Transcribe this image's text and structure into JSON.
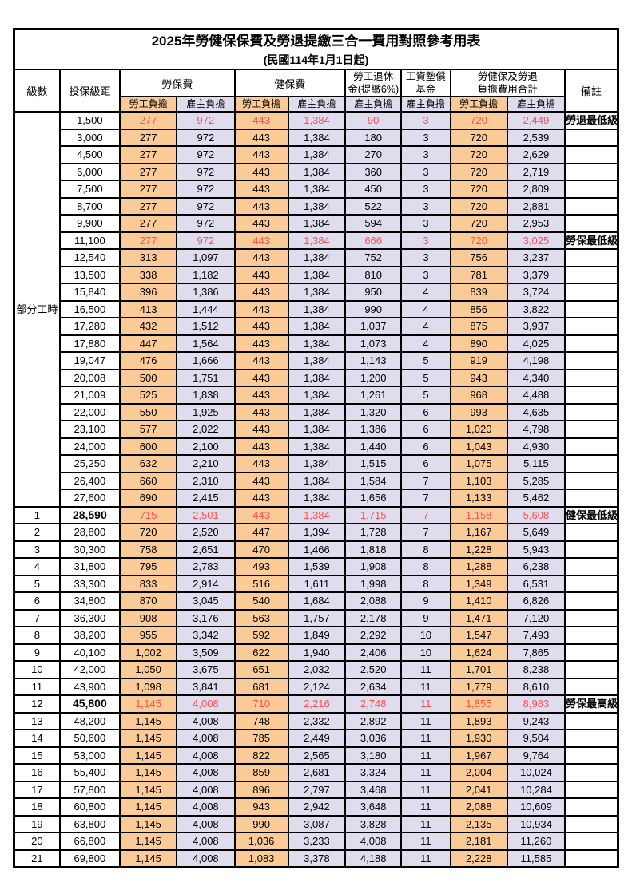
{
  "table": {
    "title": "2025年勞健保保費及勞退提繳三合一費用對照參考用表",
    "subtitle": "(民國114年1月1日起)",
    "headers": {
      "grade": "級數",
      "bracket": "投保級距",
      "labor_insurance": "勞保費",
      "health_insurance": "健保費",
      "pension_line1": "勞工退休",
      "pension_line2": "金(提繳6%)",
      "wage_fund_line1": "工資墊償",
      "wage_fund_line2": "基金",
      "total_line1": "勞健保及勞退",
      "total_line2": "負擔費用合計",
      "remarks": "備註",
      "employee_burden": "勞工負擔",
      "employer_burden": "雇主負擔"
    },
    "part_time_label": "部分工時",
    "part_time_rowspan": 23,
    "value_column_types": [
      "emp",
      "er",
      "emp",
      "er",
      "er",
      "er",
      "emp",
      "er"
    ],
    "rows": [
      {
        "grade": "",
        "bracket": "1,500",
        "values": [
          "277",
          "972",
          "443",
          "1,384",
          "90",
          "3",
          "720",
          "2,449"
        ],
        "note": "勞退最低級距",
        "red": true,
        "bold": false
      },
      {
        "grade": "",
        "bracket": "3,000",
        "values": [
          "277",
          "972",
          "443",
          "1,384",
          "180",
          "3",
          "720",
          "2,539"
        ],
        "note": "",
        "red": false,
        "bold": false
      },
      {
        "grade": "",
        "bracket": "4,500",
        "values": [
          "277",
          "972",
          "443",
          "1,384",
          "270",
          "3",
          "720",
          "2,629"
        ],
        "note": "",
        "red": false,
        "bold": false
      },
      {
        "grade": "",
        "bracket": "6,000",
        "values": [
          "277",
          "972",
          "443",
          "1,384",
          "360",
          "3",
          "720",
          "2,719"
        ],
        "note": "",
        "red": false,
        "bold": false
      },
      {
        "grade": "",
        "bracket": "7,500",
        "values": [
          "277",
          "972",
          "443",
          "1,384",
          "450",
          "3",
          "720",
          "2,809"
        ],
        "note": "",
        "red": false,
        "bold": false
      },
      {
        "grade": "",
        "bracket": "8,700",
        "values": [
          "277",
          "972",
          "443",
          "1,384",
          "522",
          "3",
          "720",
          "2,881"
        ],
        "note": "",
        "red": false,
        "bold": false
      },
      {
        "grade": "",
        "bracket": "9,900",
        "values": [
          "277",
          "972",
          "443",
          "1,384",
          "594",
          "3",
          "720",
          "2,953"
        ],
        "note": "",
        "red": false,
        "bold": false
      },
      {
        "grade": "",
        "bracket": "11,100",
        "values": [
          "277",
          "972",
          "443",
          "1,384",
          "666",
          "3",
          "720",
          "3,025"
        ],
        "note": "勞保最低級距",
        "red": true,
        "bold": false
      },
      {
        "grade": "",
        "bracket": "12,540",
        "values": [
          "313",
          "1,097",
          "443",
          "1,384",
          "752",
          "3",
          "756",
          "3,237"
        ],
        "note": "",
        "red": false,
        "bold": false
      },
      {
        "grade": "",
        "bracket": "13,500",
        "values": [
          "338",
          "1,182",
          "443",
          "1,384",
          "810",
          "3",
          "781",
          "3,379"
        ],
        "note": "",
        "red": false,
        "bold": false
      },
      {
        "grade": "",
        "bracket": "15,840",
        "values": [
          "396",
          "1,386",
          "443",
          "1,384",
          "950",
          "4",
          "839",
          "3,724"
        ],
        "note": "",
        "red": false,
        "bold": false
      },
      {
        "grade": "",
        "bracket": "16,500",
        "values": [
          "413",
          "1,444",
          "443",
          "1,384",
          "990",
          "4",
          "856",
          "3,822"
        ],
        "note": "",
        "red": false,
        "bold": false
      },
      {
        "grade": "",
        "bracket": "17,280",
        "values": [
          "432",
          "1,512",
          "443",
          "1,384",
          "1,037",
          "4",
          "875",
          "3,937"
        ],
        "note": "",
        "red": false,
        "bold": false
      },
      {
        "grade": "",
        "bracket": "17,880",
        "values": [
          "447",
          "1,564",
          "443",
          "1,384",
          "1,073",
          "4",
          "890",
          "4,025"
        ],
        "note": "",
        "red": false,
        "bold": false
      },
      {
        "grade": "",
        "bracket": "19,047",
        "values": [
          "476",
          "1,666",
          "443",
          "1,384",
          "1,143",
          "5",
          "919",
          "4,198"
        ],
        "note": "",
        "red": false,
        "bold": false
      },
      {
        "grade": "",
        "bracket": "20,008",
        "values": [
          "500",
          "1,751",
          "443",
          "1,384",
          "1,200",
          "5",
          "943",
          "4,340"
        ],
        "note": "",
        "red": false,
        "bold": false
      },
      {
        "grade": "",
        "bracket": "21,009",
        "values": [
          "525",
          "1,838",
          "443",
          "1,384",
          "1,261",
          "5",
          "968",
          "4,488"
        ],
        "note": "",
        "red": false,
        "bold": false
      },
      {
        "grade": "",
        "bracket": "22,000",
        "values": [
          "550",
          "1,925",
          "443",
          "1,384",
          "1,320",
          "6",
          "993",
          "4,635"
        ],
        "note": "",
        "red": false,
        "bold": false
      },
      {
        "grade": "",
        "bracket": "23,100",
        "values": [
          "577",
          "2,022",
          "443",
          "1,384",
          "1,386",
          "6",
          "1,020",
          "4,798"
        ],
        "note": "",
        "red": false,
        "bold": false
      },
      {
        "grade": "",
        "bracket": "24,000",
        "values": [
          "600",
          "2,100",
          "443",
          "1,384",
          "1,440",
          "6",
          "1,043",
          "4,930"
        ],
        "note": "",
        "red": false,
        "bold": false
      },
      {
        "grade": "",
        "bracket": "25,250",
        "values": [
          "632",
          "2,210",
          "443",
          "1,384",
          "1,515",
          "6",
          "1,075",
          "5,115"
        ],
        "note": "",
        "red": false,
        "bold": false
      },
      {
        "grade": "",
        "bracket": "26,400",
        "values": [
          "660",
          "2,310",
          "443",
          "1,384",
          "1,584",
          "7",
          "1,103",
          "5,285"
        ],
        "note": "",
        "red": false,
        "bold": false
      },
      {
        "grade": "",
        "bracket": "27,600",
        "values": [
          "690",
          "2,415",
          "443",
          "1,384",
          "1,656",
          "7",
          "1,133",
          "5,462"
        ],
        "note": "",
        "red": false,
        "bold": false
      },
      {
        "grade": "1",
        "bracket": "28,590",
        "values": [
          "715",
          "2,501",
          "443",
          "1,384",
          "1,715",
          "7",
          "1,158",
          "5,608"
        ],
        "note": "健保最低級距",
        "red": true,
        "bold": true
      },
      {
        "grade": "2",
        "bracket": "28,800",
        "values": [
          "720",
          "2,520",
          "447",
          "1,394",
          "1,728",
          "7",
          "1,167",
          "5,649"
        ],
        "note": "",
        "red": false,
        "bold": false
      },
      {
        "grade": "3",
        "bracket": "30,300",
        "values": [
          "758",
          "2,651",
          "470",
          "1,466",
          "1,818",
          "8",
          "1,228",
          "5,943"
        ],
        "note": "",
        "red": false,
        "bold": false
      },
      {
        "grade": "4",
        "bracket": "31,800",
        "values": [
          "795",
          "2,783",
          "493",
          "1,539",
          "1,908",
          "8",
          "1,288",
          "6,238"
        ],
        "note": "",
        "red": false,
        "bold": false
      },
      {
        "grade": "5",
        "bracket": "33,300",
        "values": [
          "833",
          "2,914",
          "516",
          "1,611",
          "1,998",
          "8",
          "1,349",
          "6,531"
        ],
        "note": "",
        "red": false,
        "bold": false
      },
      {
        "grade": "6",
        "bracket": "34,800",
        "values": [
          "870",
          "3,045",
          "540",
          "1,684",
          "2,088",
          "9",
          "1,410",
          "6,826"
        ],
        "note": "",
        "red": false,
        "bold": false
      },
      {
        "grade": "7",
        "bracket": "36,300",
        "values": [
          "908",
          "3,176",
          "563",
          "1,757",
          "2,178",
          "9",
          "1,471",
          "7,120"
        ],
        "note": "",
        "red": false,
        "bold": false
      },
      {
        "grade": "8",
        "bracket": "38,200",
        "values": [
          "955",
          "3,342",
          "592",
          "1,849",
          "2,292",
          "10",
          "1,547",
          "7,493"
        ],
        "note": "",
        "red": false,
        "bold": false
      },
      {
        "grade": "9",
        "bracket": "40,100",
        "values": [
          "1,002",
          "3,509",
          "622",
          "1,940",
          "2,406",
          "10",
          "1,624",
          "7,865"
        ],
        "note": "",
        "red": false,
        "bold": false
      },
      {
        "grade": "10",
        "bracket": "42,000",
        "values": [
          "1,050",
          "3,675",
          "651",
          "2,032",
          "2,520",
          "11",
          "1,701",
          "8,238"
        ],
        "note": "",
        "red": false,
        "bold": false
      },
      {
        "grade": "11",
        "bracket": "43,900",
        "values": [
          "1,098",
          "3,841",
          "681",
          "2,124",
          "2,634",
          "11",
          "1,779",
          "8,610"
        ],
        "note": "",
        "red": false,
        "bold": false
      },
      {
        "grade": "12",
        "bracket": "45,800",
        "values": [
          "1,145",
          "4,008",
          "710",
          "2,216",
          "2,748",
          "11",
          "1,855",
          "8,983"
        ],
        "note": "勞保最高級距",
        "red": true,
        "bold": true
      },
      {
        "grade": "13",
        "bracket": "48,200",
        "values": [
          "1,145",
          "4,008",
          "748",
          "2,332",
          "2,892",
          "11",
          "1,893",
          "9,243"
        ],
        "note": "",
        "red": false,
        "bold": false
      },
      {
        "grade": "14",
        "bracket": "50,600",
        "values": [
          "1,145",
          "4,008",
          "785",
          "2,449",
          "3,036",
          "11",
          "1,930",
          "9,504"
        ],
        "note": "",
        "red": false,
        "bold": false
      },
      {
        "grade": "15",
        "bracket": "53,000",
        "values": [
          "1,145",
          "4,008",
          "822",
          "2,565",
          "3,180",
          "11",
          "1,967",
          "9,764"
        ],
        "note": "",
        "red": false,
        "bold": false
      },
      {
        "grade": "16",
        "bracket": "55,400",
        "values": [
          "1,145",
          "4,008",
          "859",
          "2,681",
          "3,324",
          "11",
          "2,004",
          "10,024"
        ],
        "note": "",
        "red": false,
        "bold": false
      },
      {
        "grade": "17",
        "bracket": "57,800",
        "values": [
          "1,145",
          "4,008",
          "896",
          "2,797",
          "3,468",
          "11",
          "2,041",
          "10,284"
        ],
        "note": "",
        "red": false,
        "bold": false
      },
      {
        "grade": "18",
        "bracket": "60,800",
        "values": [
          "1,145",
          "4,008",
          "943",
          "2,942",
          "3,648",
          "11",
          "2,088",
          "10,609"
        ],
        "note": "",
        "red": false,
        "bold": false
      },
      {
        "grade": "19",
        "bracket": "63,800",
        "values": [
          "1,145",
          "4,008",
          "990",
          "3,087",
          "3,828",
          "11",
          "2,135",
          "10,934"
        ],
        "note": "",
        "red": false,
        "bold": false
      },
      {
        "grade": "20",
        "bracket": "66,800",
        "values": [
          "1,145",
          "4,008",
          "1,036",
          "3,233",
          "4,008",
          "11",
          "2,181",
          "11,260"
        ],
        "note": "",
        "red": false,
        "bold": false
      },
      {
        "grade": "21",
        "bracket": "69,800",
        "values": [
          "1,145",
          "4,008",
          "1,083",
          "3,378",
          "4,188",
          "11",
          "2,228",
          "11,585"
        ],
        "note": "",
        "red": false,
        "bold": false
      }
    ]
  },
  "colors": {
    "employee_bg": "#FBCB97",
    "employer_bg": "#DFDCEE",
    "highlight_red": "#FF5050",
    "note_red": "#FF4B4B",
    "border": "#000000"
  }
}
